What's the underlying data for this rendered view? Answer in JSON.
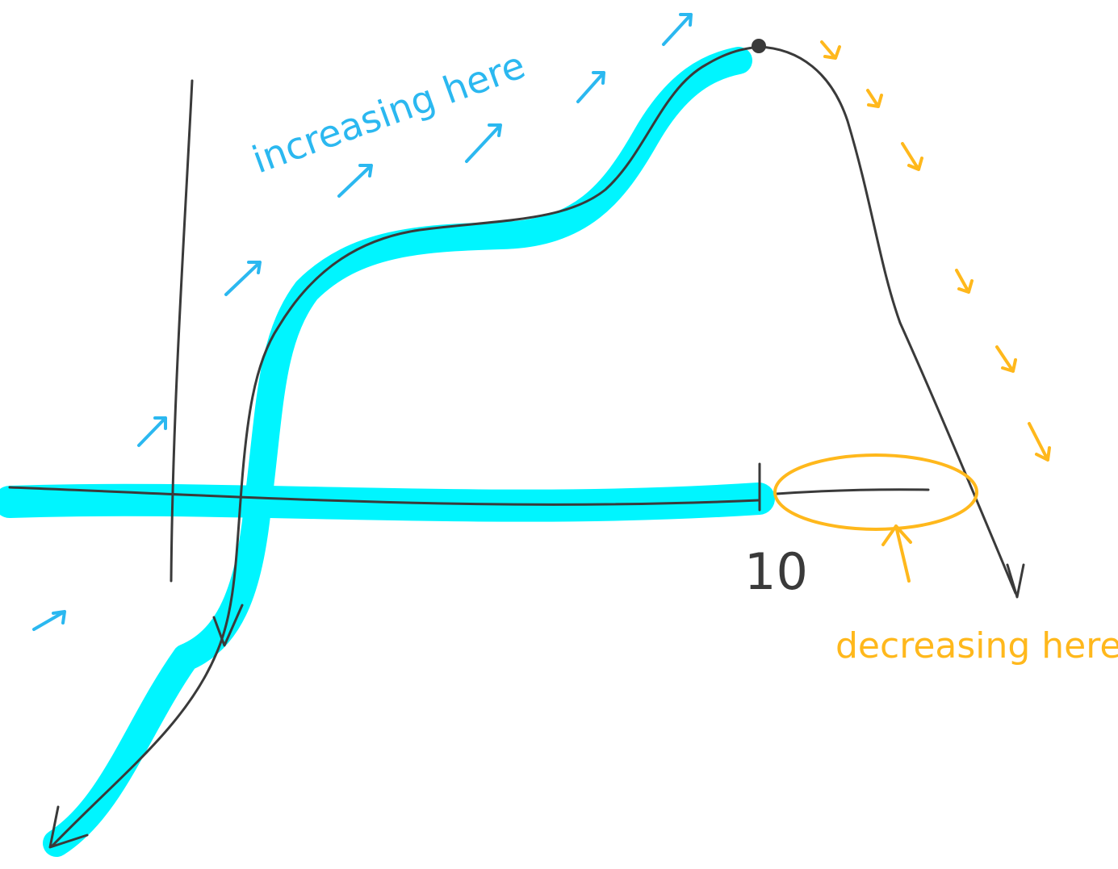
{
  "labels": {
    "increasing": "increasing here",
    "tick": "10",
    "decreasing": "decreasing here"
  }
}
